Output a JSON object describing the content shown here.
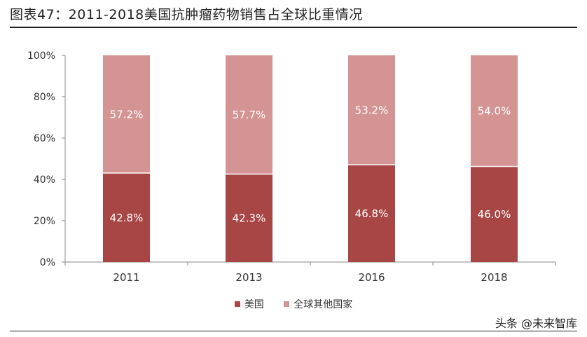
{
  "title": "图表47：2011-2018美国抗肿瘤药物销售占全球比重情况",
  "watermark": "头条 @未来智库",
  "colors": {
    "usa": "#A84545",
    "others": "#D49494"
  },
  "chart_data": {
    "type": "bar",
    "stacked": true,
    "categories": [
      "2011",
      "2013",
      "2016",
      "2018"
    ],
    "series": [
      {
        "name": "美国",
        "values": [
          42.8,
          42.3,
          46.8,
          46.0
        ],
        "labels": [
          "42.8%",
          "42.3%",
          "46.8%",
          "46.0%"
        ]
      },
      {
        "name": "全球其他国家",
        "values": [
          57.2,
          57.7,
          53.2,
          54.0
        ],
        "labels": [
          "57.2%",
          "57.7%",
          "53.2%",
          "54.0%"
        ]
      }
    ],
    "yticks": [
      "0%",
      "20%",
      "40%",
      "60%",
      "80%",
      "100%"
    ],
    "ylim": [
      0,
      100
    ],
    "grid": false,
    "legend": "bottom"
  }
}
